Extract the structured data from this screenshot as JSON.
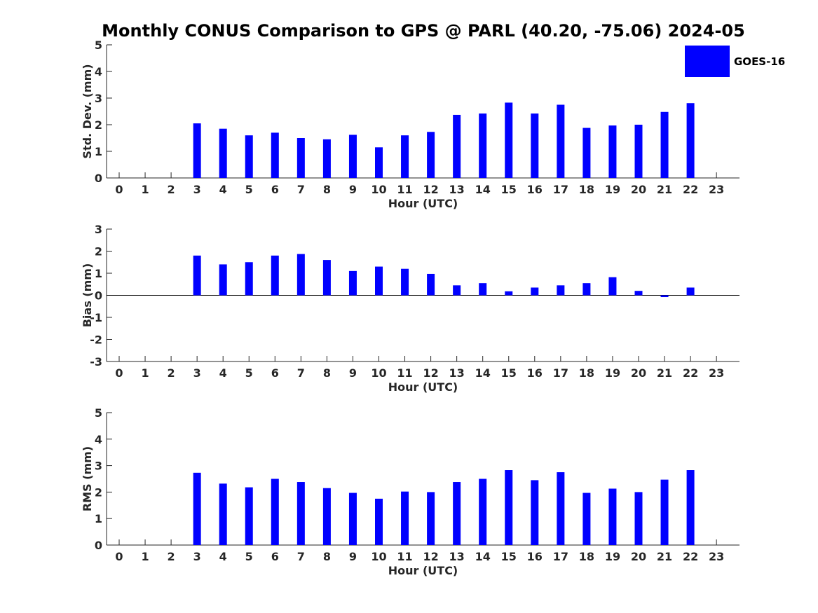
{
  "chart_data": {
    "title": "Monthly CONUS Comparison to GPS @ PARL (40.20, -75.06) 2024-05",
    "type": "bar",
    "colors": {
      "bar": "#0000ff",
      "axis": "#262626",
      "zero_line": "#000000"
    },
    "legend": {
      "label": "GOES-16",
      "placement": "top-right"
    },
    "panels": [
      {
        "name": "std",
        "type": "bar",
        "xlabel": "Hour (UTC)",
        "ylabel": "Std. Dev. (mm)",
        "ylim": [
          0,
          5
        ],
        "yticks": [
          0,
          1,
          2,
          3,
          4,
          5
        ],
        "categories": [
          0,
          1,
          2,
          3,
          4,
          5,
          6,
          7,
          8,
          9,
          10,
          11,
          12,
          13,
          14,
          15,
          16,
          17,
          18,
          19,
          20,
          21,
          22,
          23
        ],
        "series": [
          {
            "name": "GOES-16",
            "values": [
              null,
              null,
              null,
              2.05,
              1.85,
              1.6,
              1.7,
              1.5,
              1.45,
              1.62,
              1.15,
              1.6,
              1.73,
              2.37,
              2.42,
              2.83,
              2.42,
              2.75,
              1.88,
              1.97,
              2.0,
              2.48,
              2.81,
              null
            ]
          }
        ]
      },
      {
        "name": "bias",
        "type": "bar",
        "xlabel": "Hour (UTC)",
        "ylabel": "Bias (mm)",
        "ylim": [
          -3,
          3
        ],
        "yticks": [
          -3,
          -2,
          -1,
          0,
          1,
          2,
          3
        ],
        "zero_line": true,
        "categories": [
          0,
          1,
          2,
          3,
          4,
          5,
          6,
          7,
          8,
          9,
          10,
          11,
          12,
          13,
          14,
          15,
          16,
          17,
          18,
          19,
          20,
          21,
          22,
          23
        ],
        "series": [
          {
            "name": "GOES-16",
            "values": [
              null,
              null,
              null,
              1.8,
              1.4,
              1.5,
              1.8,
              1.87,
              1.6,
              1.1,
              1.3,
              1.2,
              0.97,
              0.45,
              0.55,
              0.18,
              0.35,
              0.45,
              0.55,
              0.82,
              0.2,
              -0.08,
              0.35,
              null
            ]
          }
        ]
      },
      {
        "name": "rms",
        "type": "bar",
        "xlabel": "Hour (UTC)",
        "ylabel": "RMS (mm)",
        "ylim": [
          0,
          5
        ],
        "yticks": [
          0,
          1,
          2,
          3,
          4,
          5
        ],
        "categories": [
          0,
          1,
          2,
          3,
          4,
          5,
          6,
          7,
          8,
          9,
          10,
          11,
          12,
          13,
          14,
          15,
          16,
          17,
          18,
          19,
          20,
          21,
          22,
          23
        ],
        "series": [
          {
            "name": "GOES-16",
            "values": [
              null,
              null,
              null,
              2.73,
              2.32,
              2.18,
              2.5,
              2.38,
              2.15,
              1.97,
              1.75,
              2.02,
              2.0,
              2.38,
              2.5,
              2.83,
              2.45,
              2.75,
              1.97,
              2.13,
              2.0,
              2.47,
              2.83,
              null
            ]
          }
        ]
      }
    ]
  }
}
